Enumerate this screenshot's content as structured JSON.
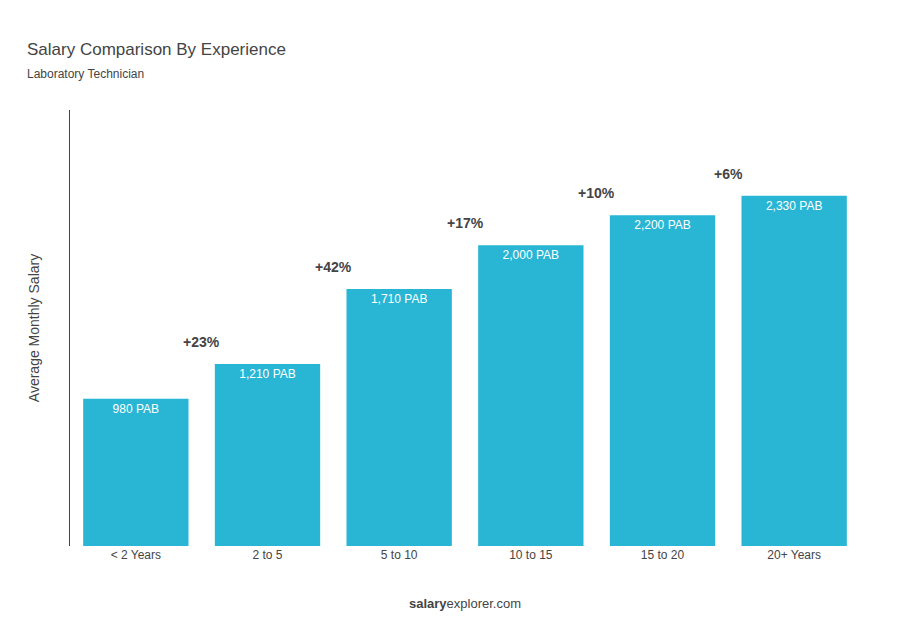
{
  "chart_data": {
    "type": "bar",
    "title": "Salary Comparison By Experience",
    "subtitle": "Laboratory Technician",
    "categories": [
      "< 2 Years",
      "2 to 5",
      "5 to 10",
      "10 to 15",
      "15 to 20",
      "20+ Years"
    ],
    "values": [
      980,
      1210,
      1710,
      2000,
      2200,
      2330
    ],
    "value_labels": [
      "980 PAB",
      "1,210 PAB",
      "1,710 PAB",
      "2,000 PAB",
      "2,200 PAB",
      "2,330 PAB"
    ],
    "data_labels": true,
    "color": "#29b6d4",
    "ylabel": "Average Monthly Salary",
    "ylim": [
      0,
      2900
    ],
    "tick_labels": "x",
    "grid": false,
    "annotations": [
      "+23%",
      "+42%",
      "+17%",
      "+10%",
      "+6%"
    ],
    "footer": [
      "salary",
      "explorer.com"
    ]
  }
}
